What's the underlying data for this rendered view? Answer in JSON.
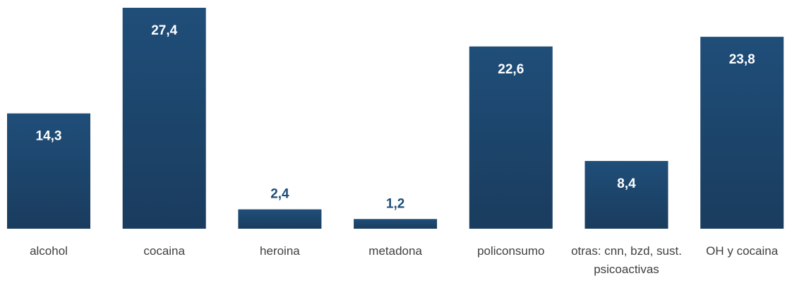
{
  "chart_data": {
    "type": "bar",
    "categories": [
      "alcohol",
      "cocaina",
      "heroina",
      "metadona",
      "policonsumo",
      "otras: cnn, bzd, sust. psicoactivas",
      "OH y cocaina"
    ],
    "values": [
      14.3,
      27.4,
      2.4,
      1.2,
      22.6,
      8.4,
      23.8
    ],
    "value_labels": [
      "14,3",
      "27,4",
      "2,4",
      "1,2",
      "22,6",
      "8,4",
      "23,8"
    ],
    "color": "#1f4e79"
  }
}
